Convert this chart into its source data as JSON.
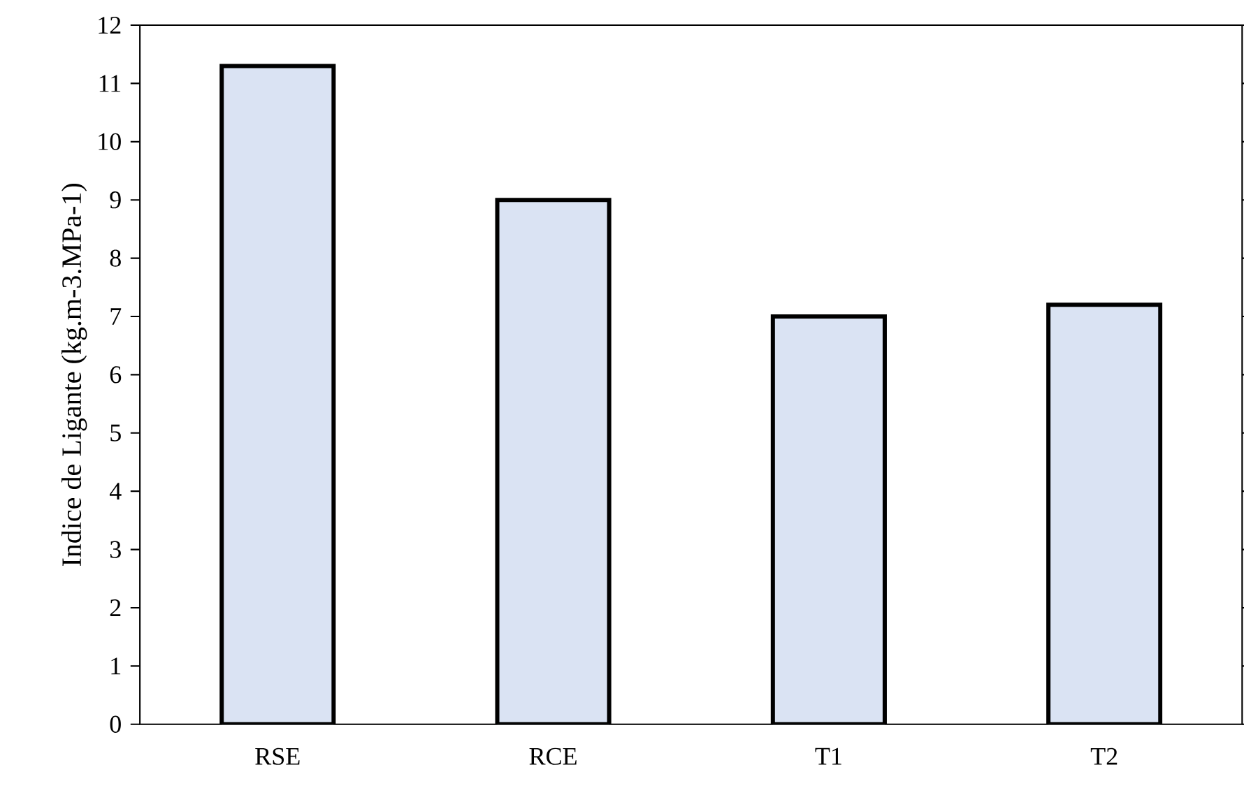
{
  "chart_data": {
    "type": "bar",
    "ylabel": "Indice de Ligante (kg.m-3.MPa-1)",
    "categories": [
      "RSE",
      "RCE",
      "T1",
      "T2"
    ],
    "values": [
      11.3,
      9.0,
      7.0,
      7.2
    ],
    "color": "#dae3f3",
    "ylim": [
      0,
      12
    ],
    "yticks": [
      0,
      1,
      2,
      3,
      4,
      5,
      6,
      7,
      8,
      9,
      10,
      11,
      12
    ]
  }
}
